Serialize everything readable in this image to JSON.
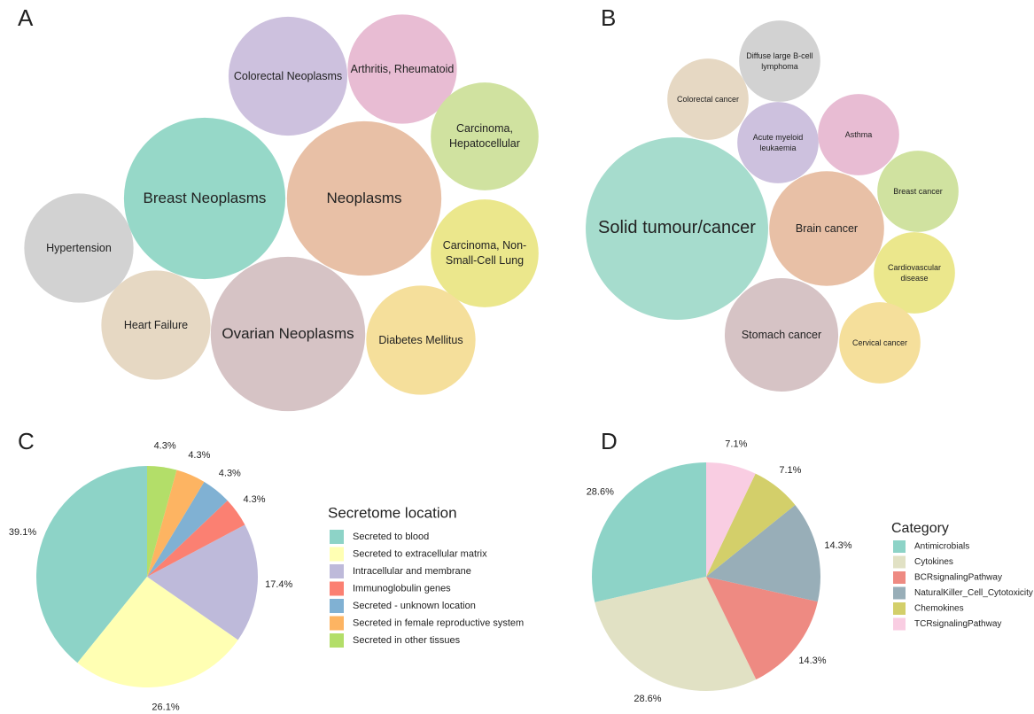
{
  "chart_data": [
    {
      "type": "bubble",
      "panel": "A",
      "categories": [
        "Breast Neoplasms",
        "Neoplasms",
        "Ovarian Neoplasms",
        "Colorectal Neoplasms",
        "Arthritis, Rheumatoid",
        "Carcinoma, Hepatocellular",
        "Carcinoma, Non-Small-Cell Lung",
        "Diabetes Mellitus",
        "Hypertension",
        "Heart Failure"
      ],
      "values": [
        83,
        76,
        76,
        45,
        38,
        37,
        37,
        38,
        38,
        38
      ],
      "colors": [
        "#96d8c8",
        "#e8c0a6",
        "#d6c3c5",
        "#cdc1de",
        "#e8bcd3",
        "#d0e2a0",
        "#ebe78c",
        "#f5df9b",
        "#d2d2d2",
        "#e6d8c3"
      ]
    },
    {
      "type": "bubble",
      "panel": "B",
      "categories": [
        "Solid tumour/cancer",
        "Brain cancer",
        "Stomach cancer",
        "Colorectal cancer",
        "Diffuse large B-cell lymphoma",
        "Acute myeloid leukaemia",
        "Asthma",
        "Breast cancer",
        "Cardiovascular disease",
        "Cervical cancer"
      ],
      "values": [
        106,
        42,
        41,
        21,
        21,
        21,
        21,
        21,
        21,
        21
      ],
      "colors": [
        "#a6dccd",
        "#e8c0a6",
        "#d6c3c5",
        "#e6d8c3",
        "#d2d2d2",
        "#cdc1de",
        "#e8bcd3",
        "#d0e2a0",
        "#ebe78c",
        "#f5df9b"
      ]
    },
    {
      "type": "pie",
      "panel": "C",
      "legend_title": "Secretome location",
      "categories": [
        "Secreted to blood",
        "Secreted to extracellular matrix",
        "Intracellular and membrane",
        "Immunoglobulin genes",
        "Secreted - unknown location",
        "Secreted in female reproductive system",
        "Secreted in other tissues"
      ],
      "values": [
        39.1,
        26.1,
        17.4,
        4.3,
        4.3,
        4.3,
        4.3
      ],
      "value_labels": [
        "39.1%",
        "26.1%",
        "17.4%",
        "4.3%",
        "4.3%",
        "4.3%",
        "4.3%"
      ],
      "colors": [
        "#8dd3c7",
        "#ffffb3",
        "#bebada",
        "#fb8072",
        "#80b1d3",
        "#fdb462",
        "#b3de69"
      ]
    },
    {
      "type": "pie",
      "panel": "D",
      "legend_title": "Category",
      "categories": [
        "Antimicrobials",
        "Cytokines",
        "BCRsignalingPathway",
        "NaturalKiller_Cell_Cytotoxicity",
        "Chemokines",
        "TCRsignalingPathway"
      ],
      "values": [
        28.6,
        28.6,
        14.3,
        14.3,
        7.1,
        7.1
      ],
      "value_labels": [
        "28.6%",
        "28.6%",
        "14.3%",
        "14.3%",
        "7.1%",
        "7.1%"
      ],
      "colors": [
        "#8dd3c7",
        "#e1e1c4",
        "#ee8a82",
        "#98aeb8",
        "#d3cf6a",
        "#f9cde2"
      ]
    }
  ]
}
